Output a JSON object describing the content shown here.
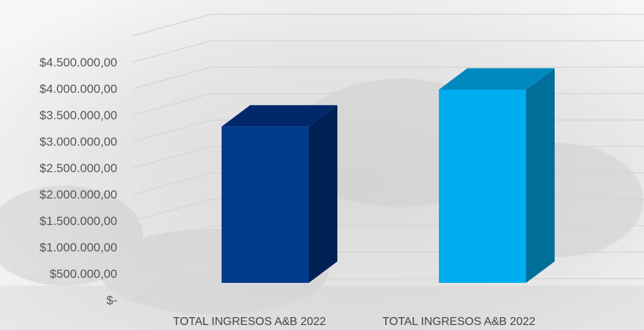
{
  "chart_data": {
    "type": "bar",
    "style": "3d-column",
    "categories": [
      "TOTAL INGRESOS A&B 2022",
      "TOTAL INGRESOS A&B 2022"
    ],
    "values": [
      3550000,
      4250000
    ],
    "colors": {
      "bar1_front": "#003A8C",
      "bar1_top": "#00286A",
      "bar1_side": "#002154",
      "bar2_front": "#00AEEF",
      "bar2_top": "#0089BF",
      "bar2_side": "#006F99",
      "grid": "#d4d4d4",
      "background_tint": "#e4e4e4"
    },
    "ylim": [
      0,
      5000000
    ],
    "ticks": [
      {
        "value": 0,
        "label": "$-"
      },
      {
        "value": 500000,
        "label": "$500.000,00"
      },
      {
        "value": 1000000,
        "label": "$1.000.000,00"
      },
      {
        "value": 1500000,
        "label": "$1.500.000,00"
      },
      {
        "value": 2000000,
        "label": "$2.000.000,00"
      },
      {
        "value": 2500000,
        "label": "$2.500.000,00"
      },
      {
        "value": 3000000,
        "label": "$3.000.000,00"
      },
      {
        "value": 3500000,
        "label": "$3.500.000,00"
      },
      {
        "value": 4000000,
        "label": "$4.000.000,00"
      },
      {
        "value": 4500000,
        "label": "$4.500.000,00"
      },
      {
        "value": 5000000,
        "label": ""
      }
    ],
    "grid": true,
    "legend": "none"
  }
}
